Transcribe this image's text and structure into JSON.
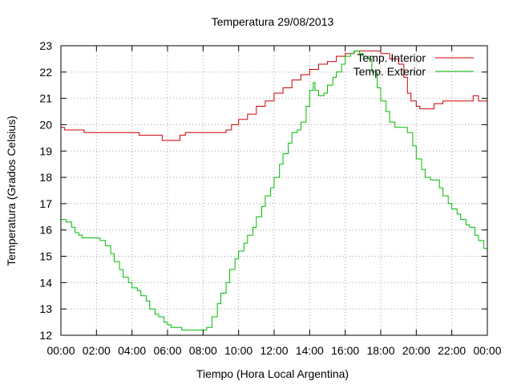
{
  "chart_data": {
    "type": "line",
    "title": "Temperatura 29/08/2013",
    "xlabel": "Tiempo (Hora Local Argentina)",
    "ylabel": "Temperatura (Grados Celsius)",
    "xlim": [
      0,
      24
    ],
    "ylim": [
      12,
      23
    ],
    "x_tick_labels": [
      "00:00",
      "02:00",
      "04:00",
      "06:00",
      "08:00",
      "10:00",
      "12:00",
      "14:00",
      "16:00",
      "18:00",
      "20:00",
      "22:00",
      "00:00"
    ],
    "y_ticks": [
      12,
      13,
      14,
      15,
      16,
      17,
      18,
      19,
      20,
      21,
      22,
      23
    ],
    "grid": true,
    "legend_position": "top-right",
    "series": [
      {
        "name": "Temp. Interior",
        "color": "#cc0000",
        "x_hours": [
          0,
          0.2,
          1.0,
          1.3,
          2.0,
          3.0,
          4.0,
          4.4,
          5.0,
          5.5,
          5.7,
          6.0,
          6.5,
          6.7,
          7.0,
          7.5,
          8.0,
          8.5,
          9.0,
          9.3,
          9.6,
          10.0,
          10.5,
          11.0,
          11.5,
          12.0,
          12.5,
          13.0,
          13.5,
          14.0,
          14.5,
          15.0,
          15.5,
          16.0,
          16.5,
          17.0,
          17.5,
          18.0,
          18.5,
          19.0,
          19.3,
          19.5,
          19.7,
          20.0,
          20.2,
          20.5,
          21.0,
          21.5,
          22.0,
          22.5,
          23.0,
          23.2,
          23.5,
          24.0
        ],
        "y": [
          19.9,
          19.8,
          19.8,
          19.7,
          19.7,
          19.7,
          19.7,
          19.6,
          19.6,
          19.6,
          19.4,
          19.4,
          19.4,
          19.6,
          19.7,
          19.7,
          19.7,
          19.7,
          19.7,
          19.8,
          20.0,
          20.2,
          20.4,
          20.7,
          20.9,
          21.2,
          21.4,
          21.7,
          21.9,
          22.1,
          22.3,
          22.4,
          22.6,
          22.7,
          22.8,
          22.8,
          22.8,
          22.7,
          22.5,
          22.3,
          21.8,
          21.2,
          20.9,
          20.7,
          20.6,
          20.6,
          20.8,
          20.9,
          20.9,
          20.9,
          20.9,
          21.1,
          20.9,
          21.1
        ]
      },
      {
        "name": "Temp. Exterior",
        "color": "#00bb00",
        "x_hours": [
          0,
          0.3,
          0.6,
          0.8,
          1.0,
          1.2,
          1.5,
          1.8,
          2.0,
          2.2,
          2.5,
          2.8,
          3.0,
          3.3,
          3.5,
          3.8,
          4.0,
          4.3,
          4.5,
          4.8,
          5.0,
          5.3,
          5.5,
          5.8,
          6.0,
          6.2,
          6.5,
          6.8,
          7.0,
          7.5,
          7.8,
          8.0,
          8.2,
          8.5,
          8.8,
          9.0,
          9.3,
          9.5,
          9.8,
          10.0,
          10.3,
          10.5,
          10.8,
          11.0,
          11.3,
          11.5,
          11.8,
          12.0,
          12.3,
          12.5,
          12.8,
          13.0,
          13.3,
          13.5,
          13.8,
          14.0,
          14.2,
          14.3,
          14.5,
          14.8,
          15.0,
          15.3,
          15.5,
          15.8,
          16.0,
          16.3,
          16.5,
          16.8,
          17.0,
          17.3,
          17.5,
          17.8,
          18.0,
          18.3,
          18.5,
          18.8,
          19.0,
          19.3,
          19.5,
          19.8,
          20.0,
          20.3,
          20.5,
          20.8,
          21.0,
          21.3,
          21.5,
          21.8,
          22.0,
          22.3,
          22.5,
          22.8,
          23.0,
          23.3,
          23.5,
          23.8,
          24.0
        ],
        "y": [
          16.4,
          16.3,
          16.1,
          15.9,
          15.8,
          15.7,
          15.7,
          15.7,
          15.7,
          15.6,
          15.4,
          15.1,
          14.8,
          14.5,
          14.2,
          14.0,
          13.8,
          13.7,
          13.5,
          13.3,
          13.0,
          12.8,
          12.7,
          12.5,
          12.4,
          12.3,
          12.3,
          12.2,
          12.2,
          12.2,
          12.2,
          12.2,
          12.3,
          12.7,
          13.2,
          13.6,
          14.0,
          14.5,
          14.9,
          15.2,
          15.5,
          15.8,
          16.1,
          16.5,
          16.9,
          17.3,
          17.6,
          18.0,
          18.5,
          18.9,
          19.3,
          19.7,
          19.8,
          20.1,
          20.7,
          21.3,
          21.6,
          21.3,
          21.1,
          21.2,
          21.5,
          21.8,
          22.0,
          22.3,
          22.6,
          22.7,
          22.8,
          22.7,
          22.6,
          22.5,
          22.0,
          21.4,
          20.9,
          20.5,
          20.1,
          19.9,
          19.9,
          19.9,
          19.7,
          19.2,
          18.7,
          18.3,
          18.0,
          17.9,
          17.9,
          17.6,
          17.3,
          17.0,
          16.8,
          16.6,
          16.4,
          16.2,
          16.1,
          15.8,
          15.6,
          15.3,
          15.0
        ]
      }
    ]
  }
}
